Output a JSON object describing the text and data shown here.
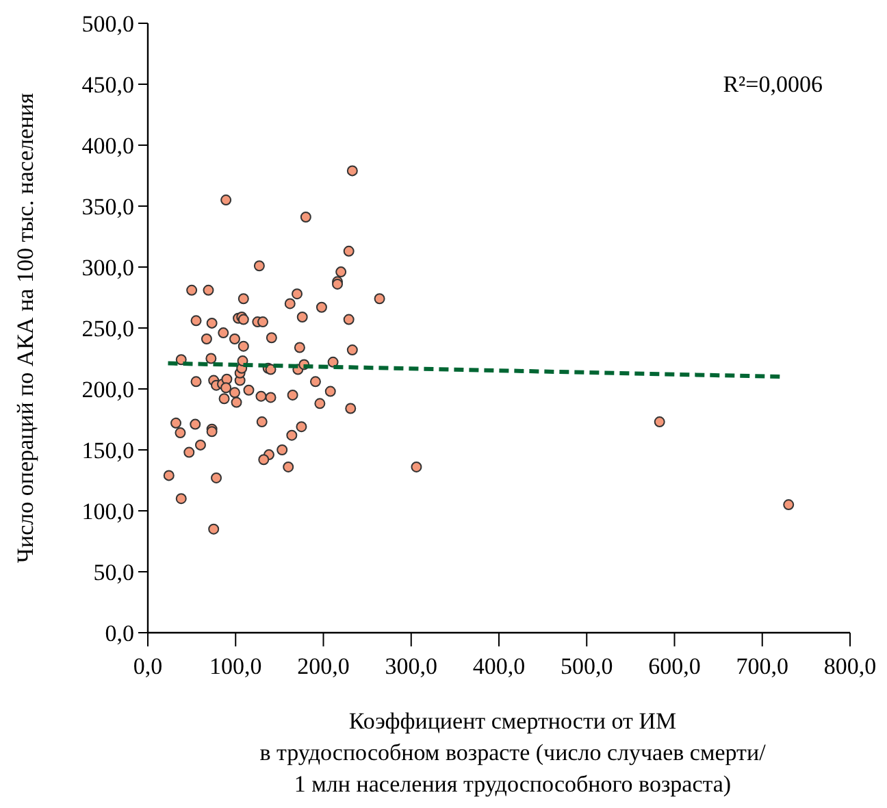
{
  "chart_data": {
    "type": "scatter",
    "xlabel": "Коэффициент смертности от ИМ\nв трудоспособном возрасте (число случаев смерти/\n1 млн населения трудоспособного возраста)",
    "ylabel": "Число операций по АКА на 100 тыс. населения",
    "annotations": [
      "R²=0,0006"
    ],
    "xlim": [
      0,
      800
    ],
    "ylim": [
      0,
      500
    ],
    "xticks": [
      {
        "value": 0,
        "label": "0,0"
      },
      {
        "value": 100,
        "label": "100,0"
      },
      {
        "value": 200,
        "label": "200,0"
      },
      {
        "value": 300,
        "label": "300,0"
      },
      {
        "value": 400,
        "label": "400,0"
      },
      {
        "value": 500,
        "label": "500,0"
      },
      {
        "value": 600,
        "label": "600,0"
      },
      {
        "value": 700,
        "label": "700,0"
      },
      {
        "value": 800,
        "label": "800,0"
      }
    ],
    "yticks": [
      {
        "value": 0,
        "label": "0,0"
      },
      {
        "value": 50,
        "label": "50,0"
      },
      {
        "value": 100,
        "label": "100,0"
      },
      {
        "value": 150,
        "label": "150,0"
      },
      {
        "value": 200,
        "label": "200,0"
      },
      {
        "value": 250,
        "label": "250,0"
      },
      {
        "value": 300,
        "label": "300,0"
      },
      {
        "value": 350,
        "label": "350,0"
      },
      {
        "value": 400,
        "label": "400,0"
      },
      {
        "value": 450,
        "label": "450,0"
      },
      {
        "value": 500,
        "label": "500,0"
      }
    ],
    "grid": false,
    "marker": "circle",
    "series": [
      {
        "color": "#f4987a",
        "x": [
          24,
          38,
          75,
          78,
          47,
          60,
          32,
          37,
          54,
          73,
          73,
          130,
          164,
          175,
          153,
          138,
          132,
          160,
          55,
          75,
          78,
          85,
          90,
          89,
          87,
          99,
          101,
          105,
          105,
          107,
          115,
          129,
          140,
          165,
          191,
          196,
          208,
          231,
          137,
          140,
          171,
          178,
          211,
          38,
          72,
          108,
          233,
          89,
          180,
          127,
          229,
          220,
          216,
          216,
          50,
          69,
          109,
          264,
          170,
          162,
          198,
          55,
          73,
          103,
          107,
          109,
          125,
          131,
          176,
          229,
          67,
          86,
          99,
          109,
          141,
          173,
          233,
          306,
          583,
          730
        ],
        "values": [
          129,
          110,
          85,
          127,
          148,
          154,
          172,
          164,
          171,
          167,
          165,
          173,
          162,
          169,
          150,
          146,
          142,
          136,
          206,
          207,
          203,
          204,
          208,
          201,
          192,
          197,
          189,
          207,
          213,
          217,
          199,
          194,
          193,
          195,
          206,
          188,
          198,
          184,
          217,
          216,
          216,
          220,
          222,
          224,
          225,
          223,
          379,
          355,
          341,
          301,
          313,
          296,
          288,
          286,
          281,
          281,
          274,
          274,
          278,
          270,
          267,
          256,
          254,
          258,
          259,
          257,
          255,
          255,
          259,
          257,
          241,
          246,
          241,
          235,
          242,
          234,
          232,
          136,
          173,
          105
        ]
      },
      {
        "type": "line",
        "color": "#006633",
        "line_style": "dashed",
        "marker": "none",
        "x": [
          23,
          725
        ],
        "values": [
          221,
          210
        ]
      }
    ]
  }
}
